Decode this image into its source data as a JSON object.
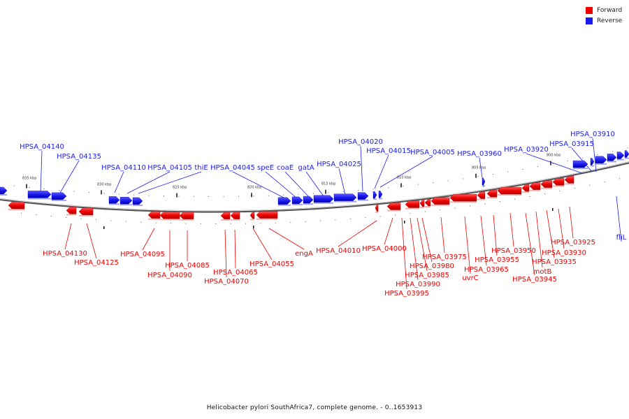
{
  "legend": {
    "forward": {
      "label": "Forward",
      "color": "#ee0000"
    },
    "reverse": {
      "label": "Reverse",
      "color": "#1a1aee"
    }
  },
  "caption": "Helicobacter pylori SouthAfrica7, complete genome. - 0..1653913",
  "ticks": [
    "835 kbp",
    "830 kbp",
    "825 kbp",
    "820 kbp",
    "815 kbp",
    "810 kbp",
    "805 kbp",
    "800 kbp"
  ],
  "reverse_labels": [
    "HPSA_04140",
    "HPSA_04135",
    "HPSA_04110",
    "HPSA_04105",
    "thiE",
    "HPSA_04045",
    "speE",
    "coaE",
    "gatA",
    "HPSA_04025",
    "HPSA_04020",
    "HPSA_04015",
    "HPSA_04005",
    "HPSA_03960",
    "HPSA_03920",
    "HPSA_03915",
    "HPSA_03910",
    "fliL"
  ],
  "forward_labels": [
    "HPSA_04130",
    "HPSA_04125",
    "HPSA_04095",
    "HPSA_04090",
    "HPSA_04085",
    "HPSA_04065",
    "HPSA_04070",
    "HPSA_04055",
    "engA",
    "HPSA_04010",
    "HPSA_04000",
    "HPSA_03995",
    "HPSA_03990",
    "HPSA_03985",
    "HPSA_03980",
    "HPSA_03975",
    "uvrC",
    "HPSA_03965",
    "HPSA_03955",
    "HPSA_03950",
    "HPSA_03945",
    "motB",
    "HPSA_03935",
    "HPSA_03930",
    "HPSA_03925"
  ]
}
